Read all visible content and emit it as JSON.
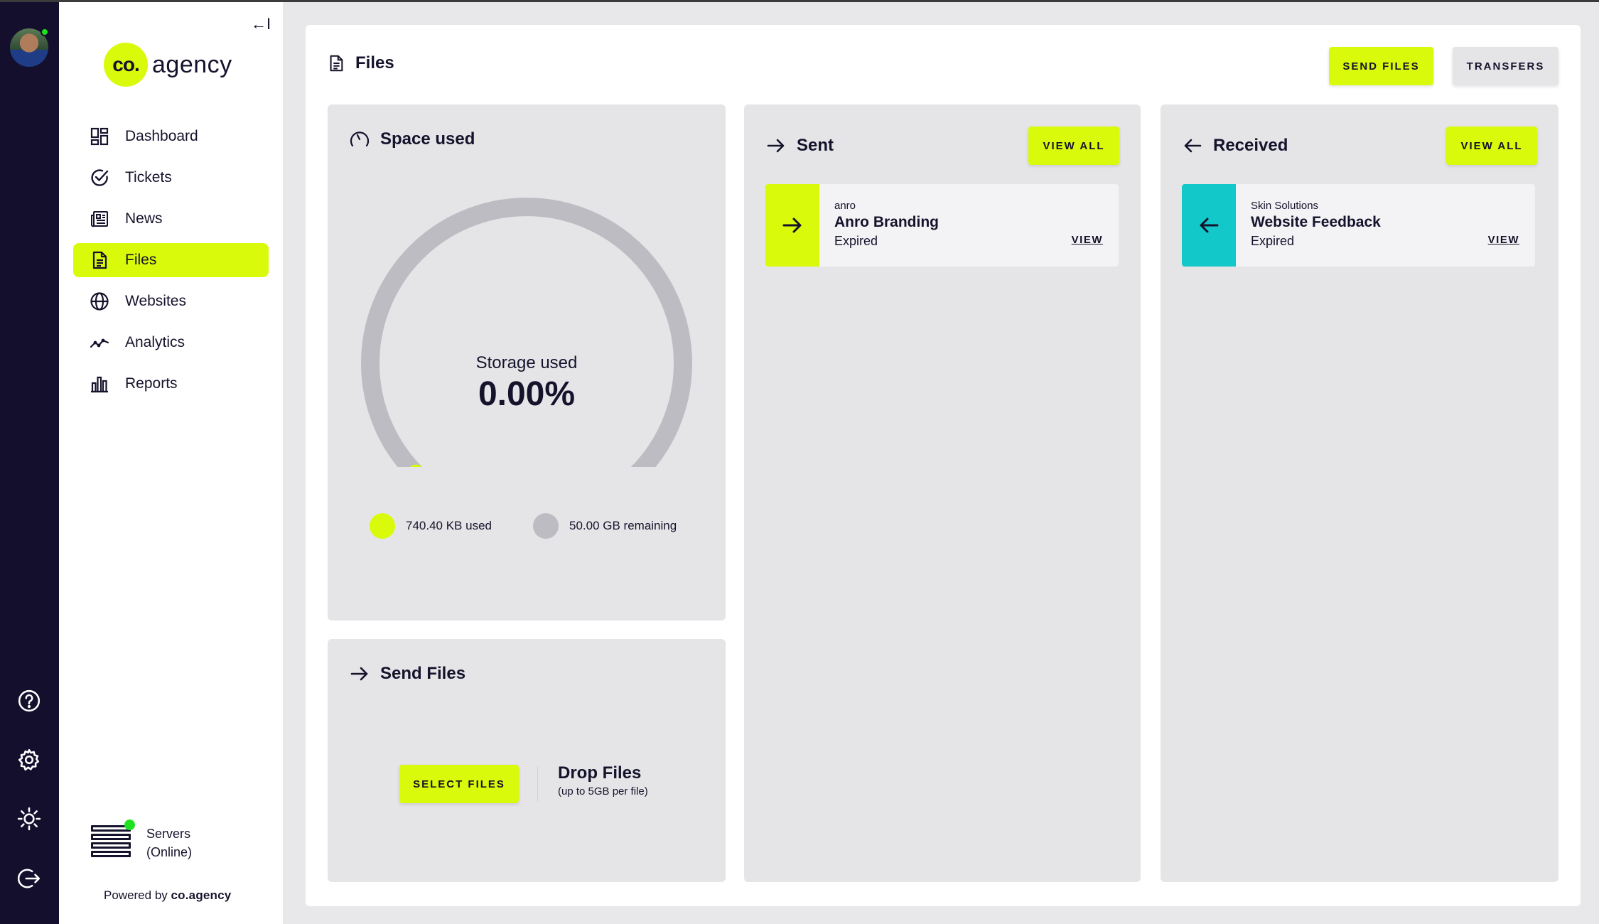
{
  "rail": {
    "icons": [
      "avatar",
      "help-icon",
      "settings-icon",
      "theme-sun-icon",
      "logout-icon"
    ],
    "online_color": "#1fe11f"
  },
  "sidebar": {
    "logo_badge": "co.",
    "logo_word": "agency",
    "collapse_glyph": "←I",
    "items": [
      {
        "label": "Dashboard",
        "icon": "dashboard-icon",
        "active": false
      },
      {
        "label": "Tickets",
        "icon": "check-circle-icon",
        "active": false
      },
      {
        "label": "News",
        "icon": "newspaper-icon",
        "active": false
      },
      {
        "label": "Files",
        "icon": "file-icon",
        "active": true
      },
      {
        "label": "Websites",
        "icon": "globe-icon",
        "active": false
      },
      {
        "label": "Analytics",
        "icon": "analytics-icon",
        "active": false
      },
      {
        "label": "Reports",
        "icon": "bar-chart-icon",
        "active": false
      }
    ],
    "servers_label": "Servers",
    "servers_status": "(Online)",
    "powered_prefix": "Powered by ",
    "powered_brand": "co.agency"
  },
  "header": {
    "title": "Files",
    "send_files_label": "SEND FILES",
    "transfers_label": "TRANSFERS"
  },
  "space": {
    "title": "Space used",
    "gauge_label": "Storage used",
    "percent_text": "0.00%",
    "used_fraction": 0.0,
    "used_text": "740.40 KB used",
    "remaining_text": "50.00 GB remaining"
  },
  "send_files": {
    "title": "Send Files",
    "select_label": "SELECT FILES",
    "drop_title": "Drop Files",
    "drop_hint": "(up to 5GB per file)"
  },
  "sent": {
    "title": "Sent",
    "view_all": "VIEW ALL",
    "items": [
      {
        "from": "anro",
        "name": "Anro Branding",
        "status": "Expired",
        "view": "VIEW"
      }
    ]
  },
  "received": {
    "title": "Received",
    "view_all": "VIEW ALL",
    "items": [
      {
        "from": "Skin Solutions",
        "name": "Website Feedback",
        "status": "Expired",
        "view": "VIEW"
      }
    ]
  },
  "colors": {
    "accent": "#d9fa0a",
    "teal": "#13c8c8",
    "navy": "#150f2e",
    "card": "#e5e5e8",
    "gauge_track": "#bdbcc2"
  }
}
